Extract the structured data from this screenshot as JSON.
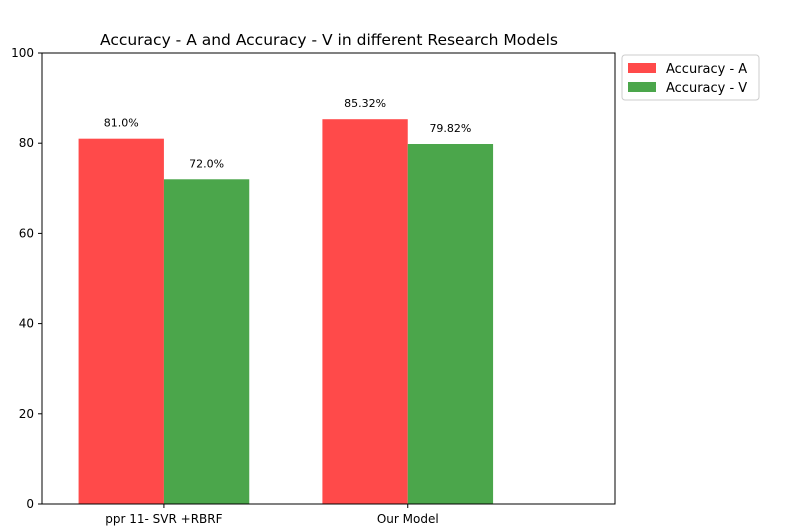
{
  "chart_data": {
    "type": "bar",
    "title": "Accuracy - A and Accuracy - V in different Research Models",
    "xlabel": "",
    "ylabel": "",
    "categories": [
      "ppr 11- SVR +RBRF",
      "Our Model"
    ],
    "series": [
      {
        "name": "Accuracy - A",
        "values": [
          81.0,
          85.32
        ],
        "labels": [
          "81.0%",
          "85.32%"
        ],
        "color": "#ff4a4a"
      },
      {
        "name": "Accuracy - V",
        "values": [
          72.0,
          79.82
        ],
        "labels": [
          "72.0%",
          "79.82%"
        ],
        "color": "#4ba64b"
      }
    ],
    "ylim": [
      0,
      100
    ],
    "yticks": [
      0,
      20,
      40,
      60,
      80,
      100
    ],
    "grid": false,
    "legend_position": "outside-top-right"
  }
}
